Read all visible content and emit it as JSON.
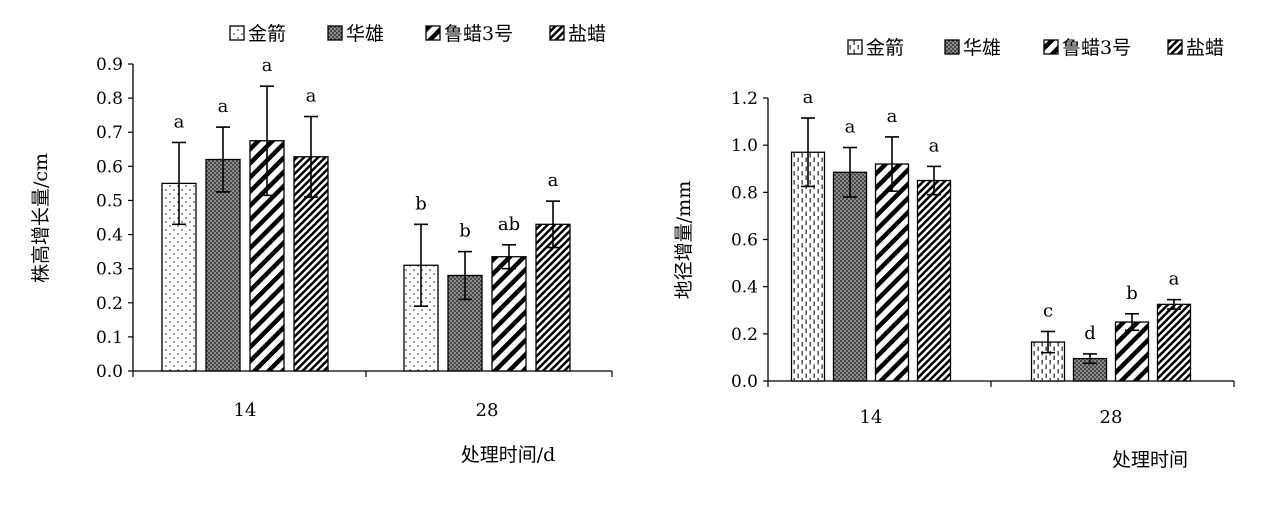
{
  "colors": {
    "axis": "#000000",
    "bar_stroke": "#000000",
    "background": "#ffffff"
  },
  "chart_data": [
    {
      "type": "bar",
      "ylabel": "株高增长量/cm",
      "xlabel": "处理时间/d",
      "ylim": [
        0,
        0.9
      ],
      "yticks": [
        "0.0",
        "0.1",
        "0.2",
        "0.3",
        "0.4",
        "0.5",
        "0.6",
        "0.7",
        "0.8",
        "0.9"
      ],
      "categories": [
        "14",
        "28"
      ],
      "legend": "top",
      "grid": false,
      "series": [
        {
          "name": "金箭",
          "pattern": "dots",
          "values": [
            0.55,
            0.31
          ],
          "errors": [
            0.12,
            0.12
          ],
          "letters": [
            "a",
            "b"
          ]
        },
        {
          "name": "华雄",
          "pattern": "check",
          "values": [
            0.62,
            0.28
          ],
          "errors": [
            0.095,
            0.07
          ],
          "letters": [
            "a",
            "b"
          ]
        },
        {
          "name": "鲁蜡3号",
          "pattern": "wide-diagonal",
          "values": [
            0.675,
            0.335
          ],
          "errors": [
            0.16,
            0.035
          ],
          "letters": [
            "a",
            "ab"
          ]
        },
        {
          "name": "盐蜡",
          "pattern": "narrow-diagonal",
          "values": [
            0.628,
            0.43
          ],
          "errors": [
            0.118,
            0.068
          ],
          "letters": [
            "a",
            "a"
          ]
        }
      ]
    },
    {
      "type": "bar",
      "ylabel": "地径增量/mm",
      "xlabel": "处理时间",
      "ylim": [
        0,
        1.2
      ],
      "yticks": [
        "0.0",
        "0.2",
        "0.4",
        "0.6",
        "0.8",
        "1.0",
        "1.2"
      ],
      "categories": [
        "14",
        "28"
      ],
      "legend": "top",
      "grid": false,
      "series": [
        {
          "name": "金箭",
          "pattern": "dashes",
          "values": [
            0.97,
            0.165
          ],
          "errors": [
            0.145,
            0.045
          ],
          "letters": [
            "a",
            "c"
          ]
        },
        {
          "name": "华雄",
          "pattern": "check",
          "values": [
            0.885,
            0.095
          ],
          "errors": [
            0.105,
            0.02
          ],
          "letters": [
            "a",
            "d"
          ]
        },
        {
          "name": "鲁蜡3号",
          "pattern": "wide-diagonal",
          "values": [
            0.92,
            0.25
          ],
          "errors": [
            0.115,
            0.035
          ],
          "letters": [
            "a",
            "b"
          ]
        },
        {
          "name": "盐蜡",
          "pattern": "narrow-diagonal",
          "values": [
            0.85,
            0.325
          ],
          "errors": [
            0.06,
            0.02
          ],
          "letters": [
            "a",
            "a"
          ]
        }
      ]
    }
  ]
}
